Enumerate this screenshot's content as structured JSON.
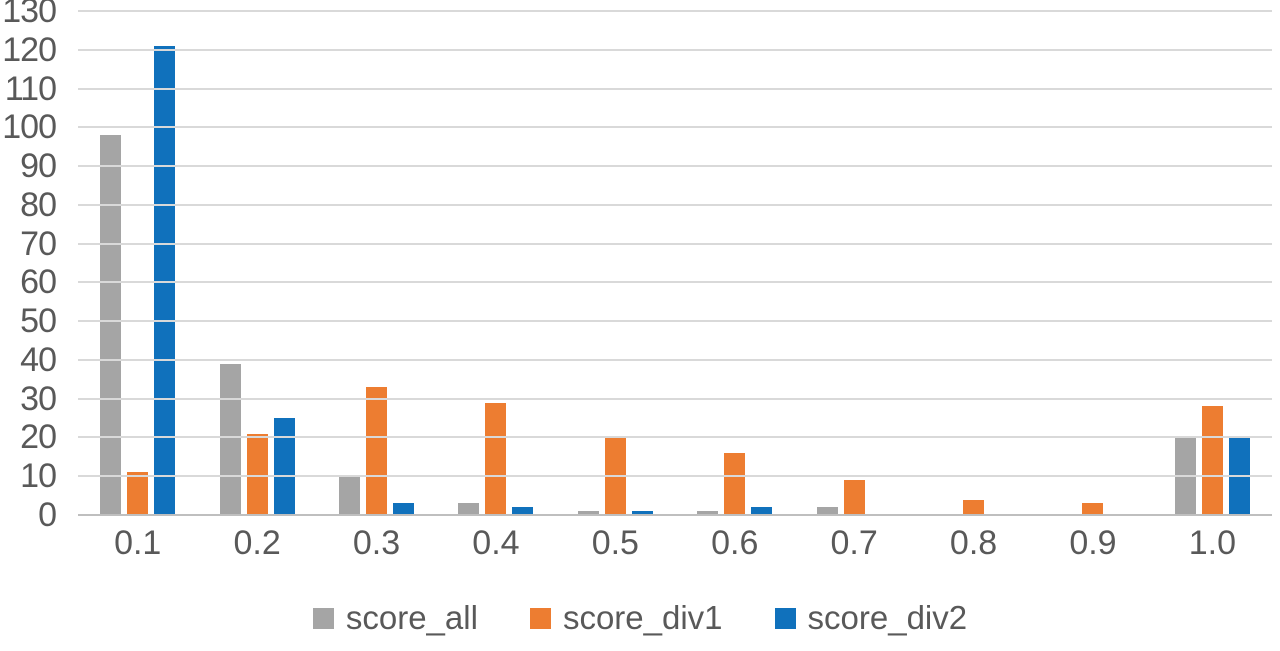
{
  "chart_data": {
    "type": "bar",
    "title": "",
    "xlabel": "",
    "ylabel": "",
    "categories": [
      "0.1",
      "0.2",
      "0.3",
      "0.4",
      "0.5",
      "0.6",
      "0.7",
      "0.8",
      "0.9",
      "1.0"
    ],
    "series": [
      {
        "name": "score_all",
        "color": "#a5a5a5",
        "values": [
          98,
          39,
          10,
          3,
          1,
          1,
          2,
          0,
          0,
          20
        ]
      },
      {
        "name": "score_div1",
        "color": "#ed7d31",
        "values": [
          11,
          21,
          33,
          29,
          20,
          16,
          9,
          4,
          3,
          28
        ]
      },
      {
        "name": "score_div2",
        "color": "#1071bc",
        "values": [
          121,
          25,
          3,
          2,
          1,
          2,
          0,
          0,
          0,
          20
        ]
      }
    ],
    "ylim": [
      0,
      130
    ],
    "ytick_step": 10,
    "grid": true,
    "legend_position": "bottom",
    "colors": {
      "background": "#ffffff",
      "gridline": "#d9d9d9",
      "axis_line": "#bfbfbf",
      "tick_text": "#595959"
    }
  }
}
